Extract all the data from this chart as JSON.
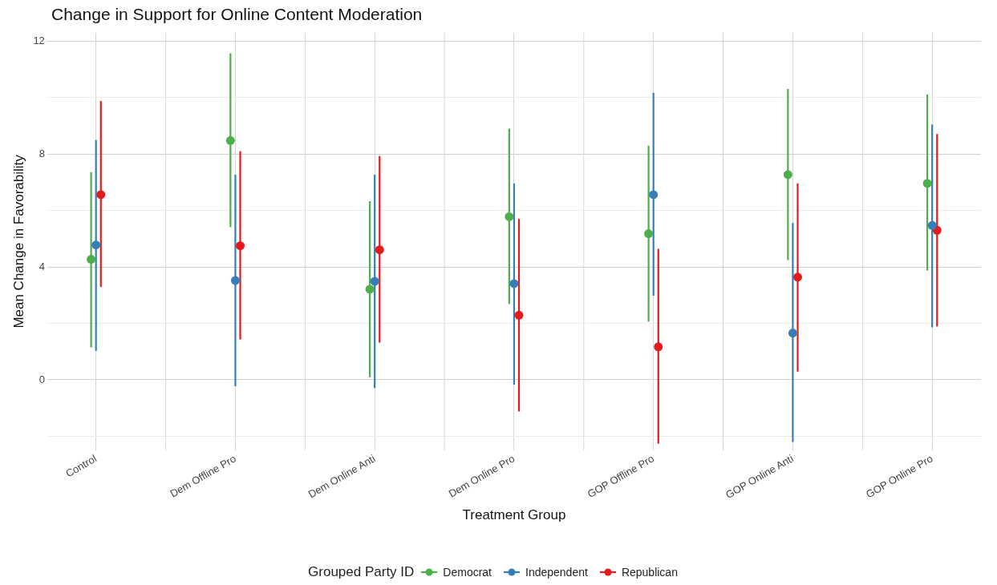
{
  "chart_data": {
    "type": "scatter",
    "title": "Change in Support for Online Content Moderation",
    "xlabel": "Treatment Group",
    "ylabel": "Mean Change in Favorability",
    "legend_title": "Grouped Party ID",
    "categories": [
      "Control",
      "Dem Offline Pro",
      "Dem Online Anti",
      "Dem Online Pro",
      "GOP Offline Pro",
      "GOP Online Anti",
      "GOP Online Pro"
    ],
    "series": [
      {
        "name": "Democrat",
        "color": "#4daf4a",
        "x": [
          "Control",
          "Dem Offline Pro",
          "Dem Online Anti",
          "Dem Online Pro",
          "GOP Offline Pro",
          "GOP Online Anti",
          "GOP Online Pro"
        ],
        "values": [
          4.27,
          8.48,
          3.21,
          5.78,
          5.18,
          7.27,
          6.96
        ],
        "errors": [
          [
            1.15,
            7.36
          ],
          [
            5.41,
            11.57
          ],
          [
            0.09,
            6.33
          ],
          [
            2.69,
            8.9
          ],
          [
            2.06,
            8.3
          ],
          [
            4.24,
            10.31
          ],
          [
            3.87,
            10.11
          ]
        ]
      },
      {
        "name": "Independent",
        "color": "#377eb8",
        "x": [
          "Control",
          "Dem Offline Pro",
          "Dem Online Anti",
          "Dem Online Pro",
          "GOP Offline Pro",
          "GOP Online Anti",
          "GOP Online Pro"
        ],
        "values": [
          4.78,
          3.52,
          3.49,
          3.41,
          6.56,
          1.66,
          5.47
        ],
        "errors": [
          [
            1.03,
            8.5
          ],
          [
            -0.23,
            7.27
          ],
          [
            -0.29,
            7.27
          ],
          [
            -0.17,
            6.96
          ],
          [
            2.98,
            10.17
          ],
          [
            -2.2,
            5.56
          ],
          [
            1.86,
            9.05
          ]
        ]
      },
      {
        "name": "Republican",
        "color": "#e41a1c",
        "x": [
          "Control",
          "Dem Offline Pro",
          "Dem Online Anti",
          "Dem Online Pro",
          "GOP Offline Pro",
          "GOP Online Anti",
          "GOP Online Pro"
        ],
        "values": [
          6.56,
          4.75,
          4.61,
          2.29,
          1.17,
          3.64,
          5.3
        ],
        "errors": [
          [
            3.29,
            9.88
          ],
          [
            1.43,
            8.1
          ],
          [
            1.32,
            7.93
          ],
          [
            -1.12,
            5.7
          ],
          [
            -2.26,
            4.64
          ],
          [
            0.29,
            6.96
          ],
          [
            1.89,
            8.71
          ]
        ]
      }
    ],
    "ylim": [
      -2.5,
      12.3
    ],
    "yticks": [
      {
        "value": -2,
        "label": null
      },
      0,
      {
        "value": 2,
        "label": null
      },
      4,
      {
        "value": 6,
        "label": null
      },
      8,
      {
        "value": 10,
        "label": null
      },
      12
    ],
    "grid": true,
    "legend": "bottom",
    "marker": "circle"
  }
}
